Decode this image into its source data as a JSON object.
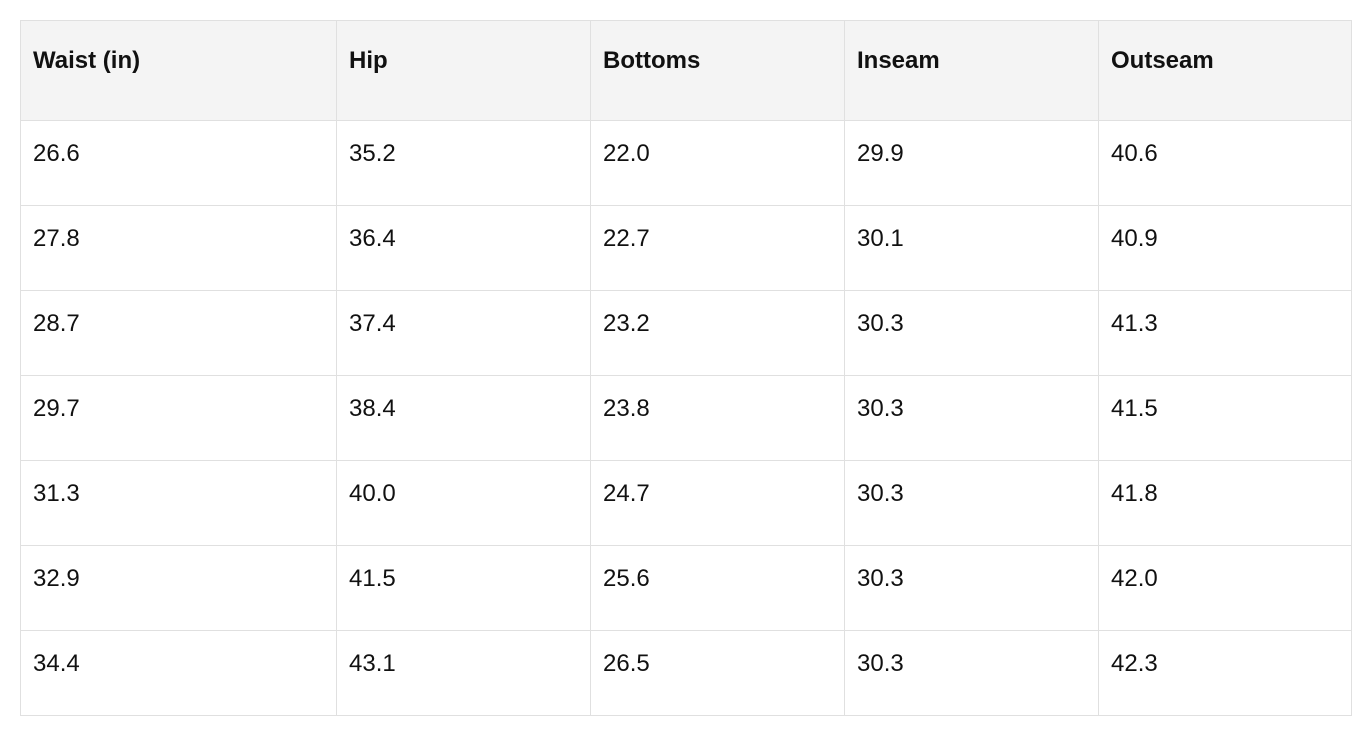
{
  "table": {
    "headers": [
      "Waist (in)",
      "Hip",
      "Bottoms",
      "Inseam",
      "Outseam"
    ],
    "rows": [
      [
        "26.6",
        "35.2",
        "22.0",
        "29.9",
        "40.6"
      ],
      [
        "27.8",
        "36.4",
        "22.7",
        "30.1",
        "40.9"
      ],
      [
        "28.7",
        "37.4",
        "23.2",
        "30.3",
        "41.3"
      ],
      [
        "29.7",
        "38.4",
        "23.8",
        "30.3",
        "41.5"
      ],
      [
        "31.3",
        "40.0",
        "24.7",
        "30.3",
        "41.8"
      ],
      [
        "32.9",
        "41.5",
        "25.6",
        "30.3",
        "42.0"
      ],
      [
        "34.4",
        "43.1",
        "26.5",
        "30.3",
        "42.3"
      ]
    ]
  }
}
